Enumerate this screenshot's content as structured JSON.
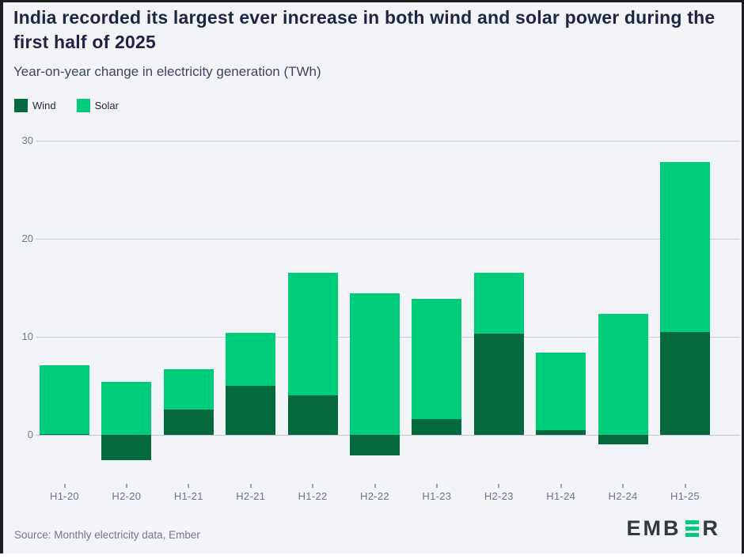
{
  "header": {
    "title": "India recorded its largest ever increase in both wind and solar power during the first half of 2025",
    "subtitle": "Year-on-year change in electricity generation (TWh)"
  },
  "footer": {
    "source": "Source: Monthly electricity data, Ember",
    "logo_pre": "EMB",
    "logo_post": "R",
    "logo_name": "EMBER"
  },
  "colors": {
    "wind": "#046a3e",
    "solar": "#00cd7c",
    "background": "#f3f4f8",
    "logo_green": "#00cd7c",
    "logo_dark": "#34383f"
  },
  "chart_data": {
    "type": "bar",
    "stacked": true,
    "title": "India recorded its largest ever increase in both wind and solar power during the first half of 2025",
    "subtitle": "Year-on-year change in electricity generation (TWh)",
    "xlabel": "",
    "ylabel": "Year-on-year change in electricity generation (TWh)",
    "categories": [
      "H1-20",
      "H2-20",
      "H1-21",
      "H2-21",
      "H1-22",
      "H2-22",
      "H1-23",
      "H2-23",
      "H1-24",
      "H2-24",
      "H1-25"
    ],
    "series": [
      {
        "name": "Wind",
        "color": "#046a3e",
        "values": [
          0.1,
          -2.6,
          2.6,
          5.0,
          4.0,
          -2.1,
          1.6,
          10.3,
          0.5,
          -1.0,
          10.5
        ]
      },
      {
        "name": "Solar",
        "color": "#00cd7c",
        "values": [
          7.0,
          5.4,
          4.1,
          5.4,
          12.5,
          14.4,
          12.3,
          6.2,
          7.9,
          12.3,
          17.3
        ]
      }
    ],
    "yticks": [
      0,
      10,
      20,
      30
    ],
    "ylim": [
      -4.5,
      30
    ],
    "grid": true,
    "legend_position": "top-left"
  }
}
